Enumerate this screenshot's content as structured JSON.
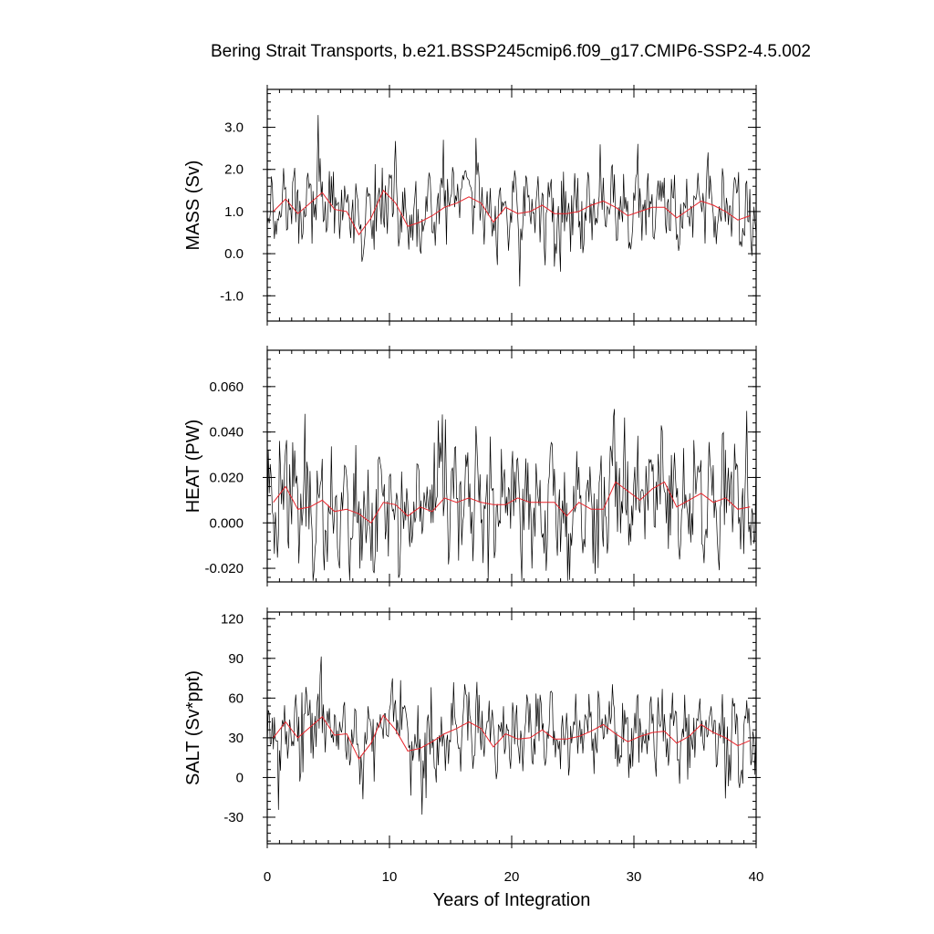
{
  "title": "Bering Strait Transports, b.e21.BSSP245cmip6.f09_g17.CMIP6-SSP2-4.5.002",
  "colors": {
    "monthly": "#000000",
    "annual": "#e8232a",
    "axis": "#000000"
  },
  "chart_data": [
    {
      "type": "line",
      "name": "mass",
      "ylabel": "MASS (Sv)",
      "xlabel": "",
      "xlim": [
        0,
        40
      ],
      "ylim": [
        -1.6,
        3.9
      ],
      "yticks": [
        -1.0,
        0.0,
        1.0,
        2.0,
        3.0
      ],
      "ytick_labels": [
        "-1.0",
        "0.0",
        "1.0",
        "2.0",
        "3.0"
      ],
      "yminor": 0.2,
      "monthly": {
        "x_start": 0.0,
        "x_step": 0.0833,
        "amplitude": 0.75,
        "spike": 1.0
      },
      "annual": {
        "x": [
          0.5,
          1.5,
          2.5,
          3.5,
          4.5,
          5.5,
          6.5,
          7.5,
          8.5,
          9.5,
          10.5,
          11.5,
          12.5,
          13.5,
          14.5,
          15.5,
          16.5,
          17.5,
          18.5,
          19.5,
          20.5,
          21.5,
          22.5,
          23.5,
          24.5,
          25.5,
          26.5,
          27.5,
          28.5,
          29.5,
          30.5,
          31.5,
          32.5,
          33.5,
          34.5,
          35.5,
          36.5,
          37.5,
          38.5,
          39.5
        ],
        "values": [
          1.0,
          1.3,
          0.95,
          1.2,
          1.45,
          1.05,
          1.0,
          0.45,
          0.85,
          1.5,
          1.2,
          0.65,
          0.75,
          0.9,
          1.1,
          1.2,
          1.35,
          1.2,
          0.75,
          1.1,
          0.95,
          1.0,
          1.15,
          0.95,
          0.95,
          1.0,
          1.15,
          1.25,
          1.1,
          0.9,
          1.0,
          1.1,
          1.1,
          0.85,
          1.05,
          1.25,
          1.15,
          1.0,
          0.8,
          0.9
        ]
      }
    },
    {
      "type": "line",
      "name": "heat",
      "ylabel": "HEAT (PW)",
      "xlabel": "",
      "xlim": [
        0,
        40
      ],
      "ylim": [
        -0.026,
        0.076
      ],
      "yticks": [
        -0.02,
        0.0,
        0.02,
        0.04,
        0.06
      ],
      "ytick_labels": [
        "-0.020",
        "0.000",
        "0.020",
        "0.040",
        "0.060"
      ],
      "yminor": 0.004,
      "monthly": {
        "x_start": 0.0,
        "x_step": 0.0833,
        "amplitude": 0.022,
        "spike": 0.025
      },
      "annual": {
        "x": [
          0.5,
          1.5,
          2.5,
          3.5,
          4.5,
          5.5,
          6.5,
          7.5,
          8.5,
          9.5,
          10.5,
          11.5,
          12.5,
          13.5,
          14.5,
          15.5,
          16.5,
          17.5,
          18.5,
          19.5,
          20.5,
          21.5,
          22.5,
          23.5,
          24.5,
          25.5,
          26.5,
          27.5,
          28.5,
          29.5,
          30.5,
          31.5,
          32.5,
          33.5,
          34.5,
          35.5,
          36.5,
          37.5,
          38.5,
          39.5
        ],
        "values": [
          0.009,
          0.016,
          0.006,
          0.007,
          0.01,
          0.005,
          0.006,
          0.004,
          0.0,
          0.009,
          0.008,
          0.003,
          0.007,
          0.005,
          0.011,
          0.009,
          0.011,
          0.009,
          0.008,
          0.008,
          0.011,
          0.009,
          0.009,
          0.009,
          0.003,
          0.009,
          0.006,
          0.006,
          0.018,
          0.014,
          0.01,
          0.015,
          0.018,
          0.007,
          0.01,
          0.013,
          0.009,
          0.011,
          0.006,
          0.007
        ]
      }
    },
    {
      "type": "line",
      "name": "salt",
      "ylabel": "SALT (Sv*ppt)",
      "xlabel": "Years of Integration",
      "xlim": [
        0,
        40
      ],
      "xticks": [
        0,
        10,
        20,
        30,
        40
      ],
      "xtick_labels": [
        "0",
        "10",
        "20",
        "30",
        "40"
      ],
      "ylim": [
        -50,
        125
      ],
      "yticks": [
        -30,
        0,
        30,
        60,
        90,
        120
      ],
      "ytick_labels": [
        "-30",
        "0",
        "30",
        "60",
        "90",
        "120"
      ],
      "yminor": 6,
      "monthly": {
        "x_start": 0.0,
        "x_step": 0.0833,
        "amplitude": 25,
        "spike": 35
      },
      "annual": {
        "x": [
          0.5,
          1.5,
          2.5,
          3.5,
          4.5,
          5.5,
          6.5,
          7.5,
          8.5,
          9.5,
          10.5,
          11.5,
          12.5,
          13.5,
          14.5,
          15.5,
          16.5,
          17.5,
          18.5,
          19.5,
          20.5,
          21.5,
          22.5,
          23.5,
          24.5,
          25.5,
          26.5,
          27.5,
          28.5,
          29.5,
          30.5,
          31.5,
          32.5,
          33.5,
          34.5,
          35.5,
          36.5,
          37.5,
          38.5,
          39.5
        ],
        "values": [
          30,
          42,
          30,
          38,
          46,
          32,
          33,
          14,
          26,
          47,
          36,
          20,
          22,
          27,
          33,
          37,
          42,
          37,
          23,
          33,
          29,
          30,
          36,
          29,
          29,
          31,
          35,
          40,
          33,
          27,
          31,
          34,
          35,
          26,
          31,
          40,
          34,
          30,
          24,
          28
        ]
      }
    }
  ]
}
